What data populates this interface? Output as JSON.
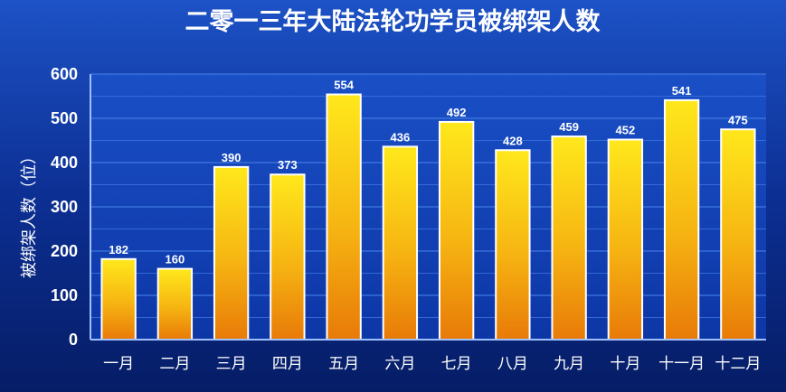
{
  "chart_data": {
    "type": "bar",
    "title": "二零一三年大陆法轮功学员被绑架人数",
    "ylabel": "被绑架人数（位）",
    "xlabel": "",
    "categories": [
      "一月",
      "二月",
      "三月",
      "四月",
      "五月",
      "六月",
      "七月",
      "八月",
      "九月",
      "十月",
      "十一月",
      "十二月"
    ],
    "values": [
      182,
      160,
      390,
      373,
      554,
      436,
      492,
      428,
      459,
      452,
      541,
      475
    ],
    "ylim": [
      0,
      600
    ],
    "yticks": [
      0,
      100,
      200,
      300,
      400,
      500,
      600
    ],
    "grid": true,
    "legend": "none"
  },
  "colors": {
    "background": "#0a2c8c",
    "plot_background": "#1546c0",
    "grid": "#3f79e0",
    "bar_top": "#ffe21a",
    "bar_bottom": "#e8820a",
    "bar_border": "#ffffff",
    "text": "#ffffff"
  }
}
